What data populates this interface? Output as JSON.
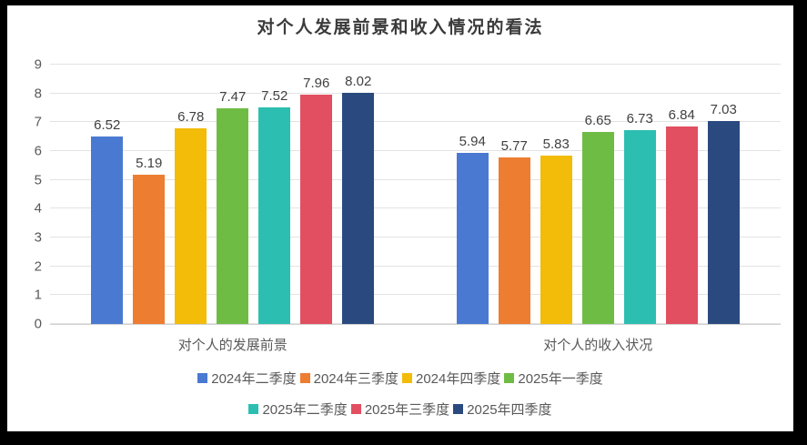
{
  "window": {
    "frame_color": "#000000",
    "background": "#ffffff"
  },
  "chart_data": {
    "type": "bar",
    "title": "对个人发展前景和收入情况的看法",
    "categories": [
      "对个人的发展前景",
      "对个人的收入状况"
    ],
    "series": [
      {
        "name": "2024年二季度",
        "color": "#4a79d1",
        "values": [
          6.52,
          5.94
        ]
      },
      {
        "name": "2024年三季度",
        "color": "#ed7d31",
        "values": [
          5.19,
          5.77
        ]
      },
      {
        "name": "2024年四季度",
        "color": "#f2bc09",
        "values": [
          6.78,
          5.83
        ]
      },
      {
        "name": "2025年一季度",
        "color": "#6fbc44",
        "values": [
          7.47,
          6.65
        ]
      },
      {
        "name": "2025年二季度",
        "color": "#2cbfb1",
        "values": [
          7.52,
          6.73
        ]
      },
      {
        "name": "2025年三季度",
        "color": "#e24f60",
        "values": [
          7.96,
          6.84
        ]
      },
      {
        "name": "2025年四季度",
        "color": "#2a4a7f",
        "values": [
          8.02,
          7.03
        ]
      }
    ],
    "ylim": [
      0,
      9
    ],
    "yticks": [
      0,
      1,
      2,
      3,
      4,
      5,
      6,
      7,
      8,
      9
    ],
    "grid": true,
    "value_labels": true,
    "legend_position": "bottom",
    "legend_rows": [
      4,
      3
    ]
  },
  "style": {
    "title_color": "#3a3a3a",
    "grid_color": "#e3e3e3",
    "axis_line_color": "#d0d0d0",
    "tick_label_color": "#595959",
    "data_label_color": "#404040",
    "category_label_color": "#595959",
    "legend_text_color": "#595959"
  }
}
